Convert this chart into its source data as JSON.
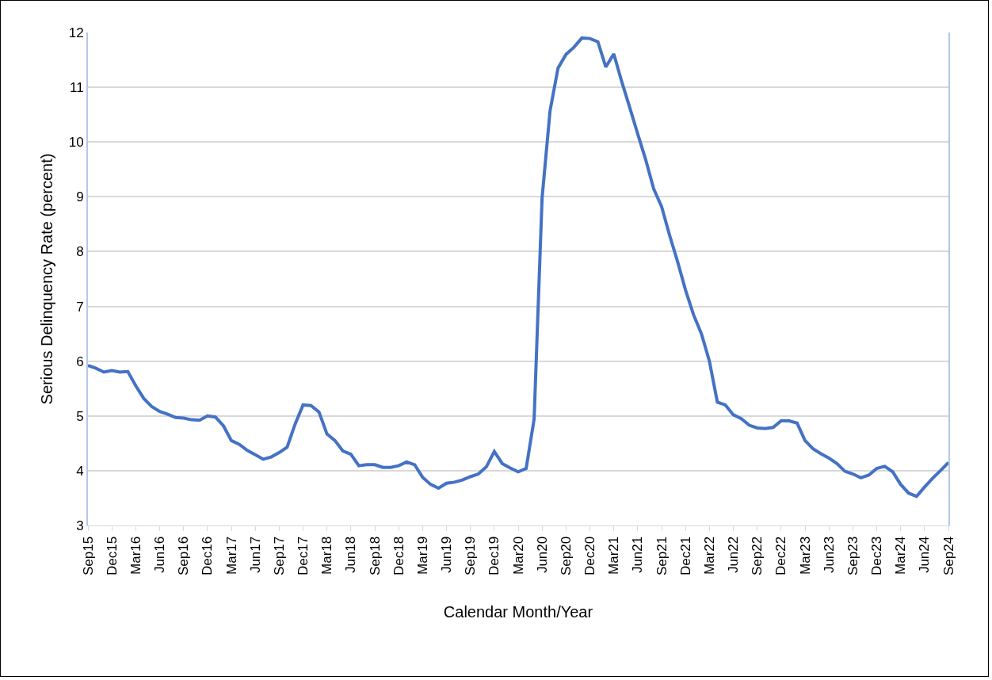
{
  "chart_data": {
    "type": "line",
    "xlabel": "Calendar Month/Year",
    "ylabel": "Serious Delinquency Rate (percent)",
    "categories": [
      "Sep15",
      null,
      null,
      "Dec15",
      null,
      null,
      "Mar16",
      null,
      null,
      "Jun16",
      null,
      null,
      "Sep16",
      null,
      null,
      "Dec16",
      null,
      null,
      "Mar17",
      null,
      null,
      "Jun17",
      null,
      null,
      "Sep17",
      null,
      null,
      "Dec17",
      null,
      null,
      "Mar18",
      null,
      null,
      "Jun18",
      null,
      null,
      "Sep18",
      null,
      null,
      "Dec18",
      null,
      null,
      "Mar19",
      null,
      null,
      "Jun19",
      null,
      null,
      "Sep19",
      null,
      null,
      "Dec19",
      null,
      null,
      "Mar20",
      null,
      null,
      "Jun20",
      null,
      null,
      "Sep20",
      null,
      null,
      "Dec20",
      null,
      null,
      "Mar21",
      null,
      null,
      "Jun21",
      null,
      null,
      "Sep21",
      null,
      null,
      "Dec21",
      null,
      null,
      "Mar22",
      null,
      null,
      "Jun22",
      null,
      null,
      "Sep22",
      null,
      null,
      "Dec22",
      null,
      null,
      "Mar23",
      null,
      null,
      "Jun23",
      null,
      null,
      "Sep23",
      null,
      null,
      "Dec23",
      null,
      null,
      "Mar24",
      null,
      null,
      "Jun24",
      null,
      null,
      "Sep24"
    ],
    "series": [
      {
        "color": "#4472c4",
        "values": [
          5.92,
          5.87,
          5.8,
          5.83,
          5.8,
          5.81,
          5.55,
          5.32,
          5.17,
          5.08,
          5.03,
          4.97,
          4.96,
          4.93,
          4.92,
          5.0,
          4.98,
          4.82,
          4.55,
          4.48,
          4.37,
          4.29,
          4.21,
          4.25,
          4.33,
          4.43,
          4.85,
          5.2,
          5.19,
          5.07,
          4.67,
          4.55,
          4.36,
          4.3,
          4.09,
          4.11,
          4.11,
          4.06,
          4.06,
          4.09,
          4.16,
          4.11,
          3.88,
          3.75,
          3.68,
          3.77,
          3.79,
          3.83,
          3.89,
          3.94,
          4.07,
          4.35,
          4.13,
          4.05,
          3.98,
          4.04,
          4.94,
          8.98,
          10.57,
          11.35,
          11.6,
          11.73,
          11.9,
          11.89,
          11.83,
          11.37,
          11.61,
          11.1,
          10.63,
          10.15,
          9.68,
          9.15,
          8.82,
          8.3,
          7.82,
          7.3,
          6.85,
          6.5,
          6.0,
          5.25,
          5.2,
          5.02,
          4.95,
          4.83,
          4.78,
          4.77,
          4.79,
          4.91,
          4.91,
          4.87,
          4.55,
          4.4,
          4.31,
          4.23,
          4.13,
          3.99,
          3.94,
          3.87,
          3.92,
          4.04,
          4.08,
          3.98,
          3.75,
          3.59,
          3.53,
          3.7,
          3.86,
          4.0,
          4.15
        ]
      }
    ],
    "ylim": [
      3,
      12
    ],
    "yticks": [
      3,
      4,
      5,
      6,
      7,
      8,
      9,
      10,
      11,
      12
    ],
    "grid": "y",
    "marker": "none",
    "line_style": "solid"
  }
}
